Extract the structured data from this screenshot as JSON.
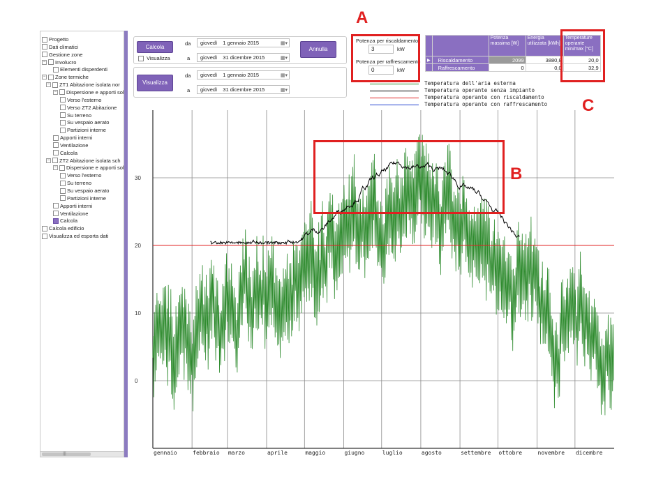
{
  "tree": {
    "items": [
      {
        "label": "Progetto"
      },
      {
        "label": "Dati climatici"
      },
      {
        "label": "Gestione zone"
      },
      {
        "label": "Involucro"
      },
      {
        "label": "Elementi disperdenti"
      },
      {
        "label": "Zone termiche"
      },
      {
        "label": "ZT1 Abitazione isolata nor"
      },
      {
        "label": "Dispersione e apporti sol"
      },
      {
        "label": "Verso l'esterno"
      },
      {
        "label": "Verso ZT2 Abitazione"
      },
      {
        "label": "Su terreno"
      },
      {
        "label": "Su vespaio aerato"
      },
      {
        "label": "Partizioni interne"
      },
      {
        "label": "Apporti interni"
      },
      {
        "label": "Ventilazione"
      },
      {
        "label": "Calcola"
      },
      {
        "label": "ZT2 Abitazione isolata sch"
      },
      {
        "label": "Dispersione e apporti sol"
      },
      {
        "label": "Verso l'esterno"
      },
      {
        "label": "Su terreno"
      },
      {
        "label": "Su vespaio aerato"
      },
      {
        "label": "Partizioni interne"
      },
      {
        "label": "Apporti interni"
      },
      {
        "label": "Ventilazione"
      },
      {
        "label": "Calcola"
      },
      {
        "label": "Calcola edificio"
      },
      {
        "label": "Visualizza ed esporta dati"
      }
    ],
    "scroll_grip": "|||"
  },
  "controls": {
    "calcola_label": "Calcola",
    "visualizza_check_label": "Visualizza",
    "visualizza_button_label": "Visualizza",
    "annulla_label": "Annulla",
    "da_label": "da",
    "a_label": "a",
    "calc_from": {
      "day": "giovedì",
      "date": "1  gennaio  2015"
    },
    "calc_to": {
      "day": "giovedì",
      "date": "31 dicembre  2015"
    },
    "vis_from": {
      "day": "giovedì",
      "date": "1  gennaio  2015"
    },
    "vis_to": {
      "day": "giovedì",
      "date": "31 dicembre  2015"
    }
  },
  "power": {
    "heating_label": "Potenza per riscaldamento",
    "heating_value": "3",
    "heating_unit": "kW",
    "cooling_label": "Potenza per raffrescamento",
    "cooling_value": "0",
    "cooling_unit": "kW"
  },
  "results": {
    "headers": [
      "Potenza massima [W]",
      "Energia utilizzata [kWh]",
      "Temperature operante min/max [°C]"
    ],
    "rows": [
      {
        "name": "Riscaldamento",
        "power": "2099",
        "energy": "3880,8",
        "temp": "20,0"
      },
      {
        "name": "Raffrescamento",
        "power": "0",
        "energy": "0,0",
        "temp": "32,9"
      }
    ]
  },
  "legend": [
    {
      "label": "Temperatura dell'aria esterna",
      "color": "#2e8b2e"
    },
    {
      "label": "Temperatura operante senza impianto",
      "color": "#000000"
    },
    {
      "label": "Temperatura operante con riscaldamento",
      "color": "#e02020"
    },
    {
      "label": "Temperatura operante con raffrescamento",
      "color": "#2040d0"
    }
  ],
  "annotations": {
    "a": "A",
    "b": "B",
    "c": "C"
  },
  "colors": {
    "accent": "#7f62b8",
    "highlight": "#e02020",
    "outdoor": "#2e8b2e"
  },
  "chart_data": {
    "type": "line",
    "y_ticks": [
      "0",
      "10",
      "20",
      "30"
    ],
    "ylim": [
      -10,
      40
    ],
    "months": [
      "gennaio",
      "febbraio",
      "marzo",
      "aprile",
      "maggio",
      "giugno",
      "luglio",
      "agosto",
      "settembre",
      "ottobre",
      "novembre",
      "dicembre"
    ],
    "heating_setpoint": 20,
    "series": [
      {
        "name": "Temperatura dell'aria esterna",
        "monthly_mean": [
          5,
          6,
          11,
          14,
          18,
          24,
          26,
          26,
          20,
          15,
          9,
          4
        ],
        "daily_swing": 6
      },
      {
        "name": "Temperatura operante senza impianto",
        "monthly_mean": [
          null,
          null,
          20.3,
          20.6,
          23,
          29,
          32,
          31,
          27,
          21,
          null,
          null
        ]
      },
      {
        "name": "Temperatura operante con riscaldamento",
        "constant": 20
      }
    ]
  }
}
